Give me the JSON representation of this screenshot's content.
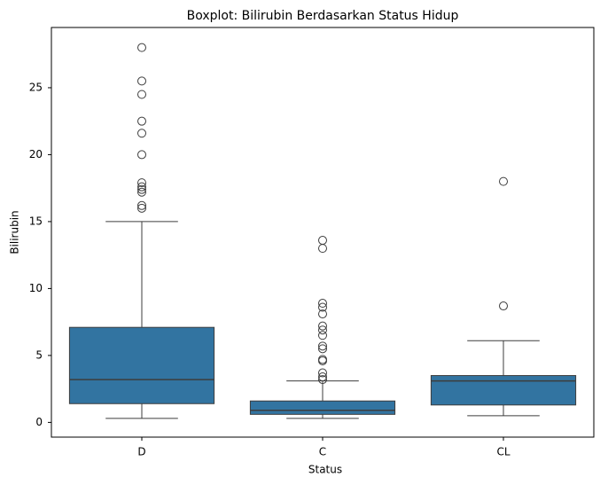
{
  "chart_data": {
    "type": "boxplot",
    "title": "Boxplot: Bilirubin Berdasarkan Status Hidup",
    "x_label": "Status",
    "y_label": "Bilirubin",
    "categories": [
      "D",
      "C",
      "CL"
    ],
    "color": "#3274a1",
    "boxes": [
      {
        "min": 0.3,
        "q1": 1.4,
        "median": 3.2,
        "q3": 7.1,
        "max": 15.0,
        "outliers": [
          28.0,
          25.5,
          24.5,
          22.5,
          21.6,
          20.0,
          17.9,
          17.6,
          17.4,
          17.2,
          16.2,
          16.0
        ]
      },
      {
        "min": 0.3,
        "q1": 0.6,
        "median": 0.9,
        "q3": 1.6,
        "max": 3.1,
        "outliers": [
          13.6,
          13.0,
          8.9,
          8.6,
          8.1,
          7.2,
          6.9,
          6.5,
          5.7,
          5.5,
          4.7,
          4.6,
          3.7,
          3.4,
          3.2
        ]
      },
      {
        "min": 0.5,
        "q1": 1.3,
        "median": 3.1,
        "q3": 3.5,
        "max": 6.1,
        "outliers": [
          18.0,
          8.7
        ]
      }
    ],
    "ylim": [
      -1.1,
      29.5
    ],
    "yticks": [
      0,
      5,
      10,
      15,
      20,
      25
    ],
    "grid": false
  }
}
